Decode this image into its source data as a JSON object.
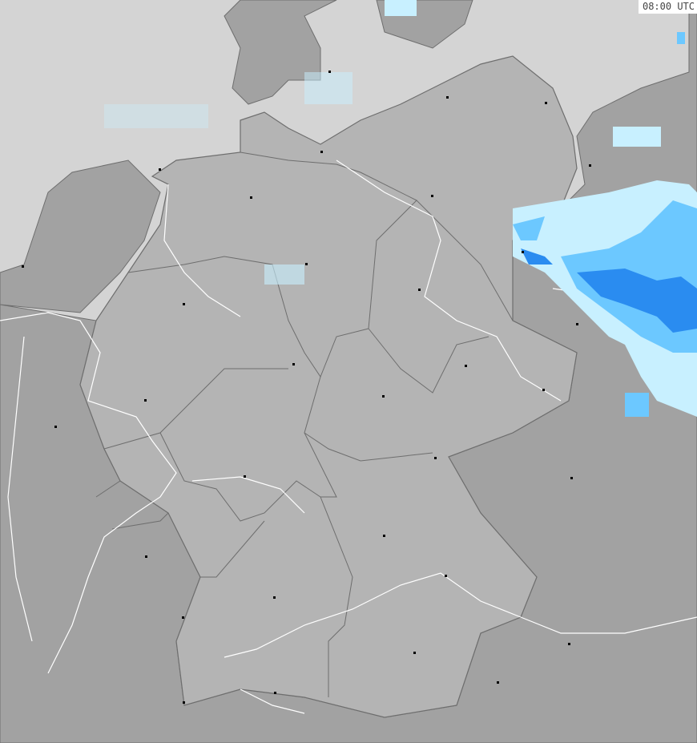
{
  "timestamp": "08:00 UTC",
  "colors": {
    "sea": "#d4d4d4",
    "foreign_land": "#a2a2a2",
    "germany_land": "#b4b4b4",
    "border": "#6e6e6e",
    "river": "#ffffff",
    "precip_light": "#c8f0ff",
    "precip_medium": "#6cc8ff",
    "precip_heavy": "#2a8cf0",
    "city": "#000000"
  }
}
